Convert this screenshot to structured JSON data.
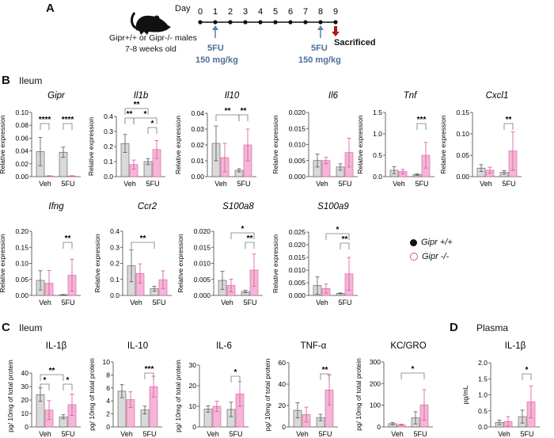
{
  "panel_a": {
    "label": "A",
    "day_label": "Day",
    "days": [
      "0",
      "1",
      "2",
      "3",
      "4",
      "5",
      "6",
      "7",
      "8",
      "9"
    ],
    "mouse_text_1": "Gipr+/+ or Gipr-/- males",
    "mouse_text_2": "7-8 weeks old",
    "dose1_drug": "5FU",
    "dose1_amount": "150 mg/kg",
    "dose2_drug": "5FU",
    "dose2_amount": "150 mg/kg",
    "end_label": "Sacrificed",
    "colors": {
      "dose_arrow": "#5b7fa6",
      "end_arrow": "#b01818"
    }
  },
  "panel_b": {
    "label": "B",
    "tissue": "Ileum"
  },
  "panel_c": {
    "label": "C",
    "tissue": "Ileum"
  },
  "panel_d": {
    "label": "D",
    "tissue": "Plasma"
  },
  "legend": {
    "wt": "Gipr +/+",
    "ko": "Gipr -/-"
  },
  "colors": {
    "wt_fill": "#d9d9d9",
    "wt_edge": "#555555",
    "ko_fill": "#f4b6d6",
    "ko_edge": "#d8559a"
  },
  "chart_data": [
    {
      "type": "bar",
      "title": "Gipr",
      "italic": true,
      "ylabel": "Relative expression",
      "categories": [
        "Veh",
        "5FU"
      ],
      "yticks": [
        "0.00",
        "0.02",
        "0.04",
        "0.06",
        "0.08",
        "0.10"
      ],
      "ylim": [
        0,
        0.1
      ],
      "series": [
        {
          "name": "Gipr +/+",
          "values": [
            0.039,
            0.038
          ],
          "error": [
            0.022,
            0.008
          ]
        },
        {
          "name": "Gipr -/-",
          "values": [
            0.001,
            0.001
          ],
          "error": [
            0.0005,
            0.0005
          ]
        }
      ],
      "significance": [
        {
          "a": 0,
          "b": 1,
          "label": "****",
          "level": 0
        },
        {
          "a": 2,
          "b": 3,
          "label": "****",
          "level": 0
        }
      ]
    },
    {
      "type": "bar",
      "title": "Il1b",
      "italic": true,
      "ylabel": "Relative expression",
      "categories": [
        "Veh",
        "5FU"
      ],
      "yticks": [
        "0.0",
        "0.1",
        "0.2",
        "0.3",
        "0.4"
      ],
      "ylim": [
        0,
        0.4
      ],
      "series": [
        {
          "name": "Gipr +/+",
          "values": [
            0.22,
            0.1
          ],
          "error": [
            0.06,
            0.02
          ]
        },
        {
          "name": "Gipr -/-",
          "values": [
            0.08,
            0.18
          ],
          "error": [
            0.03,
            0.06
          ]
        }
      ],
      "significance": [
        {
          "a": 0,
          "b": 1,
          "label": "**",
          "level": 1
        },
        {
          "a": 2,
          "b": 3,
          "label": "*",
          "level": 0
        },
        {
          "a": 1,
          "b": 3,
          "label": "*",
          "level": 1
        },
        {
          "a": 0,
          "b": 2,
          "label": "**",
          "level": 2
        }
      ]
    },
    {
      "type": "bar",
      "title": "Il10",
      "italic": true,
      "ylabel": "Relative expression",
      "categories": [
        "Veh",
        "5FU"
      ],
      "yticks": [
        "0.00",
        "0.01",
        "0.02",
        "0.03",
        "0.04"
      ],
      "ylim": [
        0,
        0.04
      ],
      "series": [
        {
          "name": "Gipr +/+",
          "values": [
            0.021,
            0.004
          ],
          "error": [
            0.011,
            0.001
          ]
        },
        {
          "name": "Gipr -/-",
          "values": [
            0.012,
            0.02
          ],
          "error": [
            0.009,
            0.01
          ]
        }
      ],
      "significance": [
        {
          "a": 0,
          "b": 2,
          "label": "**",
          "level": 1
        },
        {
          "a": 2,
          "b": 3,
          "label": "**",
          "level": 1
        }
      ]
    },
    {
      "type": "bar",
      "title": "Il6",
      "italic": true,
      "ylabel": "Relative expression",
      "categories": [
        "Veh",
        "5FU"
      ],
      "yticks": [
        "0.000",
        "0.005",
        "0.010",
        "0.015",
        "0.020"
      ],
      "ylim": [
        0,
        0.02
      ],
      "series": [
        {
          "name": "Gipr +/+",
          "values": [
            0.005,
            0.003
          ],
          "error": [
            0.002,
            0.001
          ]
        },
        {
          "name": "Gipr -/-",
          "values": [
            0.005,
            0.0075
          ],
          "error": [
            0.001,
            0.0045
          ]
        }
      ],
      "significance": []
    },
    {
      "type": "bar",
      "title": "Tnf",
      "italic": true,
      "ylabel": "Relative expression",
      "categories": [
        "Veh",
        "5FU"
      ],
      "yticks": [
        "0.0",
        "0.5",
        "1.0",
        "1.5"
      ],
      "ylim": [
        0,
        1.5
      ],
      "series": [
        {
          "name": "Gipr +/+",
          "values": [
            0.15,
            0.05
          ],
          "error": [
            0.08,
            0.02
          ]
        },
        {
          "name": "Gipr -/-",
          "values": [
            0.12,
            0.5
          ],
          "error": [
            0.05,
            0.3
          ]
        }
      ],
      "significance": [
        {
          "a": 2,
          "b": 3,
          "label": "***",
          "level": 0
        }
      ]
    },
    {
      "type": "bar",
      "title": "Cxcl1",
      "italic": true,
      "ylabel": "Relative expression",
      "categories": [
        "Veh",
        "5FU"
      ],
      "yticks": [
        "0.00",
        "0.05",
        "0.10",
        "0.15"
      ],
      "ylim": [
        0,
        0.15
      ],
      "series": [
        {
          "name": "Gipr +/+",
          "values": [
            0.02,
            0.01
          ],
          "error": [
            0.008,
            0.004
          ]
        },
        {
          "name": "Gipr -/-",
          "values": [
            0.015,
            0.06
          ],
          "error": [
            0.007,
            0.045
          ]
        }
      ],
      "significance": [
        {
          "a": 2,
          "b": 3,
          "label": "**",
          "level": 0
        }
      ]
    },
    {
      "type": "bar",
      "title": "Ifng",
      "italic": true,
      "ylabel": "Relative expression",
      "categories": [
        "Veh",
        "5FU"
      ],
      "yticks": [
        "0.00",
        "0.05",
        "0.10",
        "0.15",
        "0.20"
      ],
      "ylim": [
        0,
        0.2
      ],
      "series": [
        {
          "name": "Gipr +/+",
          "values": [
            0.047,
            0.002
          ],
          "error": [
            0.03,
            0.001
          ]
        },
        {
          "name": "Gipr -/-",
          "values": [
            0.038,
            0.063
          ],
          "error": [
            0.04,
            0.05
          ]
        }
      ],
      "significance": [
        {
          "a": 2,
          "b": 3,
          "label": "**",
          "level": 0
        }
      ]
    },
    {
      "type": "bar",
      "title": "Ccr2",
      "italic": true,
      "ylabel": "Relative expression",
      "categories": [
        "Veh",
        "5FU"
      ],
      "yticks": [
        "0.0",
        "0.1",
        "0.2",
        "0.3",
        "0.4"
      ],
      "ylim": [
        0,
        0.4
      ],
      "series": [
        {
          "name": "Gipr +/+",
          "values": [
            0.185,
            0.042
          ],
          "error": [
            0.1,
            0.015
          ]
        },
        {
          "name": "Gipr -/-",
          "values": [
            0.137,
            0.098
          ],
          "error": [
            0.06,
            0.055
          ]
        }
      ],
      "significance": [
        {
          "a": 0,
          "b": 2,
          "label": "**",
          "level": 0
        }
      ]
    },
    {
      "type": "bar",
      "title": "S100a8",
      "italic": true,
      "ylabel": "Relative expression",
      "categories": [
        "Veh",
        "5FU"
      ],
      "yticks": [
        "0.000",
        "0.005",
        "0.010",
        "0.015",
        "0.020"
      ],
      "ylim": [
        0,
        0.02
      ],
      "series": [
        {
          "name": "Gipr +/+",
          "values": [
            0.0047,
            0.0012
          ],
          "error": [
            0.0028,
            0.0004
          ]
        },
        {
          "name": "Gipr -/-",
          "values": [
            0.0031,
            0.0079
          ],
          "error": [
            0.002,
            0.005
          ]
        }
      ],
      "significance": [
        {
          "a": 2,
          "b": 3,
          "label": "**",
          "level": 0
        },
        {
          "a": 1,
          "b": 3,
          "label": "*",
          "level": 1
        }
      ]
    },
    {
      "type": "bar",
      "title": "S100a9",
      "italic": true,
      "ylabel": "Relative expression",
      "categories": [
        "Veh",
        "5FU"
      ],
      "yticks": [
        "0.000",
        "0.005",
        "0.010",
        "0.015",
        "0.020",
        "0.025"
      ],
      "ylim": [
        0,
        0.025
      ],
      "series": [
        {
          "name": "Gipr +/+",
          "values": [
            0.0039,
            0.0008
          ],
          "error": [
            0.0034,
            0.0002
          ]
        },
        {
          "name": "Gipr -/-",
          "values": [
            0.0027,
            0.0085
          ],
          "error": [
            0.0018,
            0.0065
          ]
        }
      ],
      "significance": [
        {
          "a": 2,
          "b": 3,
          "label": "**",
          "level": 0
        },
        {
          "a": 1,
          "b": 3,
          "label": "*",
          "level": 1
        }
      ]
    },
    {
      "type": "bar",
      "title": "IL-1β",
      "italic": false,
      "ylabel": "pg/ 10mg of total protein",
      "categories": [
        "Veh",
        "5FU"
      ],
      "yticks": [
        "0",
        "10",
        "20",
        "30",
        "40"
      ],
      "ylim": [
        0,
        40
      ],
      "series": [
        {
          "name": "Gipr +/+",
          "values": [
            24,
            7.5
          ],
          "error": [
            5,
            1.5
          ]
        },
        {
          "name": "Gipr -/-",
          "values": [
            12.5,
            16.5
          ],
          "error": [
            7,
            8
          ]
        }
      ],
      "significance": [
        {
          "a": 0,
          "b": 1,
          "label": "*",
          "level": 0
        },
        {
          "a": 2,
          "b": 3,
          "label": "*",
          "level": 0
        },
        {
          "a": 0,
          "b": 2,
          "label": "**",
          "level": 1
        }
      ]
    },
    {
      "type": "bar",
      "title": "IL-10",
      "italic": false,
      "ylabel": "pg/ 10mg of total protein",
      "categories": [
        "Veh",
        "5FU"
      ],
      "yticks": [
        "0",
        "2",
        "4",
        "6",
        "8",
        "10"
      ],
      "ylim": [
        0,
        10
      ],
      "series": [
        {
          "name": "Gipr +/+",
          "values": [
            5.5,
            2.6
          ],
          "error": [
            1.0,
            0.6
          ]
        },
        {
          "name": "Gipr -/-",
          "values": [
            4.2,
            6.2
          ],
          "error": [
            1.2,
            1.6
          ]
        }
      ],
      "significance": [
        {
          "a": 2,
          "b": 3,
          "label": "***",
          "level": 0
        }
      ]
    },
    {
      "type": "bar",
      "title": "IL-6",
      "italic": false,
      "ylabel": "pg/ 10mg of total protein",
      "categories": [
        "Veh",
        "5FU"
      ],
      "yticks": [
        "0",
        "10",
        "20",
        "30"
      ],
      "ylim": [
        0,
        30
      ],
      "series": [
        {
          "name": "Gipr +/+",
          "values": [
            8.7,
            8.5
          ],
          "error": [
            1.5,
            3.5
          ]
        },
        {
          "name": "Gipr -/-",
          "values": [
            10,
            16
          ],
          "error": [
            2.5,
            6
          ]
        }
      ],
      "significance": [
        {
          "a": 2,
          "b": 3,
          "label": "*",
          "level": 0
        }
      ]
    },
    {
      "type": "bar",
      "title": "TNF-α",
      "italic": false,
      "ylabel": "pg/ 10mg of total protein",
      "categories": [
        "Veh",
        "5FU"
      ],
      "yticks": [
        "0",
        "20",
        "40",
        "60"
      ],
      "ylim": [
        0,
        60
      ],
      "series": [
        {
          "name": "Gipr +/+",
          "values": [
            15.5,
            8.8
          ],
          "error": [
            7,
            3
          ]
        },
        {
          "name": "Gipr -/-",
          "values": [
            11.5,
            34.5
          ],
          "error": [
            7,
            14
          ]
        }
      ],
      "significance": [
        {
          "a": 2,
          "b": 3,
          "label": "**",
          "level": 0
        }
      ]
    },
    {
      "type": "bar",
      "title": "KC/GRO",
      "italic": false,
      "ylabel": "pg/ 10mg of total protein",
      "categories": [
        "Veh",
        "5FU"
      ],
      "yticks": [
        "0",
        "100",
        "200",
        "300"
      ],
      "ylim": [
        0,
        300
      ],
      "series": [
        {
          "name": "Gipr +/+",
          "values": [
            15,
            42
          ],
          "error": [
            5,
            28
          ]
        },
        {
          "name": "Gipr -/-",
          "values": [
            10,
            102
          ],
          "error": [
            3,
            70
          ]
        }
      ],
      "significance": [
        {
          "a": 1,
          "b": 3,
          "label": "*",
          "level": 0
        }
      ]
    },
    {
      "type": "bar",
      "title": "IL-1β",
      "italic": false,
      "ylabel": "pg/mL",
      "categories": [
        "Veh",
        "5FU"
      ],
      "yticks": [
        "0.0",
        "0.5",
        "1.0",
        "1.5",
        "2.0"
      ],
      "ylim": [
        0,
        2.0
      ],
      "series": [
        {
          "name": "Gipr +/+",
          "values": [
            0.14,
            0.32
          ],
          "error": [
            0.07,
            0.2
          ]
        },
        {
          "name": "Gipr -/-",
          "values": [
            0.17,
            0.78
          ],
          "error": [
            0.15,
            0.5
          ]
        }
      ],
      "significance": [
        {
          "a": 2,
          "b": 3,
          "label": "*",
          "level": 0
        }
      ]
    }
  ]
}
